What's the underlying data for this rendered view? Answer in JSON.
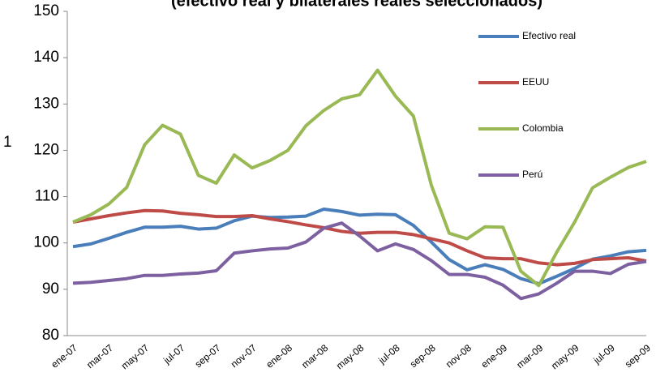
{
  "chart_data": {
    "type": "line",
    "title": "(efectivo real y bilaterales reales seleccionados)",
    "y_label": "1",
    "categories": [
      "ene-07",
      null,
      "mar-07",
      null,
      "may-07",
      null,
      "jul-07",
      null,
      "sep-07",
      null,
      "nov-07",
      null,
      "ene-08",
      null,
      "mar-08",
      null,
      "may-08",
      null,
      "jul-08",
      null,
      "sep-08",
      null,
      "nov-08",
      null,
      "ene-09",
      null,
      "mar-09",
      null,
      "may-09",
      null,
      "jul-09",
      null,
      "sep-09"
    ],
    "series": [
      {
        "name": "Efectivo real",
        "color": "#4a7ebb",
        "values": [
          99.2,
          99.8,
          101,
          102.3,
          103.4,
          103.4,
          103.6,
          103,
          103.2,
          104.8,
          105.8,
          105.5,
          105.6,
          105.8,
          107.3,
          106.8,
          106,
          106.2,
          106.1,
          103.8,
          100.2,
          96.4,
          94.2,
          95.3,
          94.3,
          92.3,
          91.2,
          92.8,
          94.5,
          96.5,
          97.2,
          98.1,
          98.4
        ]
      },
      {
        "name": "EEUU",
        "color": "#be4b48",
        "values": [
          104.5,
          105.2,
          105.9,
          106.5,
          107,
          106.9,
          106.4,
          106.1,
          105.7,
          105.7,
          105.9,
          105.2,
          104.6,
          103.9,
          103.3,
          102.5,
          102.1,
          102.3,
          102.3,
          101.8,
          100.9,
          100,
          98.3,
          96.8,
          96.6,
          96.6,
          95.7,
          95.3,
          95.6,
          96.4,
          96.6,
          96.8,
          96.1
        ]
      },
      {
        "name": "Colombia",
        "color": "#98b954",
        "values": [
          104.5,
          106.1,
          108.4,
          112,
          121.2,
          125.4,
          123.5,
          114.6,
          112.9,
          119,
          116.2,
          117.8,
          120,
          125.3,
          128.6,
          131.1,
          132,
          137.3,
          131.7,
          127.4,
          112.5,
          102.1,
          100.9,
          103.5,
          103.4,
          93.9,
          90.8,
          98,
          104.5,
          111.9,
          114.2,
          116.3,
          117.6
        ]
      },
      {
        "name": "Perú",
        "color": "#7d60a0",
        "values": [
          91.3,
          91.5,
          91.9,
          92.3,
          93,
          93,
          93.3,
          93.5,
          94,
          97.8,
          98.3,
          98.7,
          98.9,
          100.2,
          103.2,
          104.3,
          101.5,
          98.3,
          99.8,
          98.6,
          96.2,
          93.2,
          93.2,
          92.6,
          90.9,
          88,
          89,
          91.3,
          93.9,
          93.9,
          93.4,
          95.4,
          96
        ]
      }
    ],
    "ylim": [
      80,
      150
    ],
    "yticks": [
      80,
      90,
      100,
      110,
      120,
      130,
      140,
      150
    ],
    "grid": false,
    "legend": "right"
  }
}
